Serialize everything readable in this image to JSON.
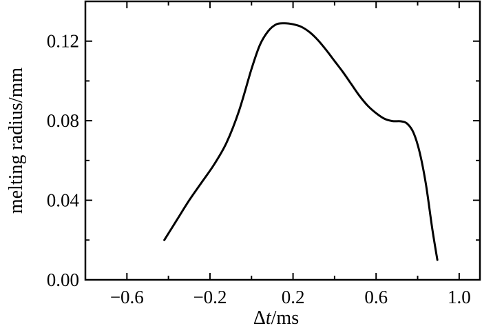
{
  "chart_data": {
    "type": "line",
    "title": "",
    "xlabel": {
      "prefix": "Δ",
      "var": "t",
      "unit": "/ms"
    },
    "ylabel": "melting radius/mm",
    "xlim": [
      -0.8,
      1.1
    ],
    "ylim": [
      0.0,
      0.14
    ],
    "x_ticks": [
      -0.6,
      -0.2,
      0.2,
      0.6,
      1.0
    ],
    "x_tick_labels": [
      "−0.6",
      "−0.2",
      "0.2",
      "0.6",
      "1.0"
    ],
    "x_minor_ticks": [
      -0.4,
      0.0,
      0.4,
      0.8
    ],
    "y_ticks": [
      0.0,
      0.04,
      0.08,
      0.12
    ],
    "y_tick_labels": [
      "0.00",
      "0.04",
      "0.08",
      "0.12"
    ],
    "y_minor_ticks": [
      0.02,
      0.06,
      0.1
    ],
    "grid": false,
    "line_color": "#000000",
    "series": [
      {
        "x": [
          -0.42,
          -0.36,
          -0.3,
          -0.24,
          -0.18,
          -0.12,
          -0.06,
          0.0,
          0.04,
          0.08,
          0.12,
          0.16,
          0.2,
          0.24,
          0.28,
          0.32,
          0.36,
          0.4,
          0.44,
          0.48,
          0.52,
          0.56,
          0.6,
          0.64,
          0.68,
          0.72,
          0.75,
          0.78,
          0.81,
          0.84,
          0.87,
          0.895
        ],
        "values": [
          0.02,
          0.03,
          0.04,
          0.049,
          0.058,
          0.069,
          0.085,
          0.106,
          0.118,
          0.125,
          0.1285,
          0.129,
          0.1285,
          0.1272,
          0.1245,
          0.1205,
          0.1155,
          0.11,
          0.1045,
          0.0985,
          0.0925,
          0.0875,
          0.0838,
          0.081,
          0.0798,
          0.0797,
          0.0785,
          0.074,
          0.064,
          0.048,
          0.026,
          0.01
        ]
      }
    ]
  }
}
